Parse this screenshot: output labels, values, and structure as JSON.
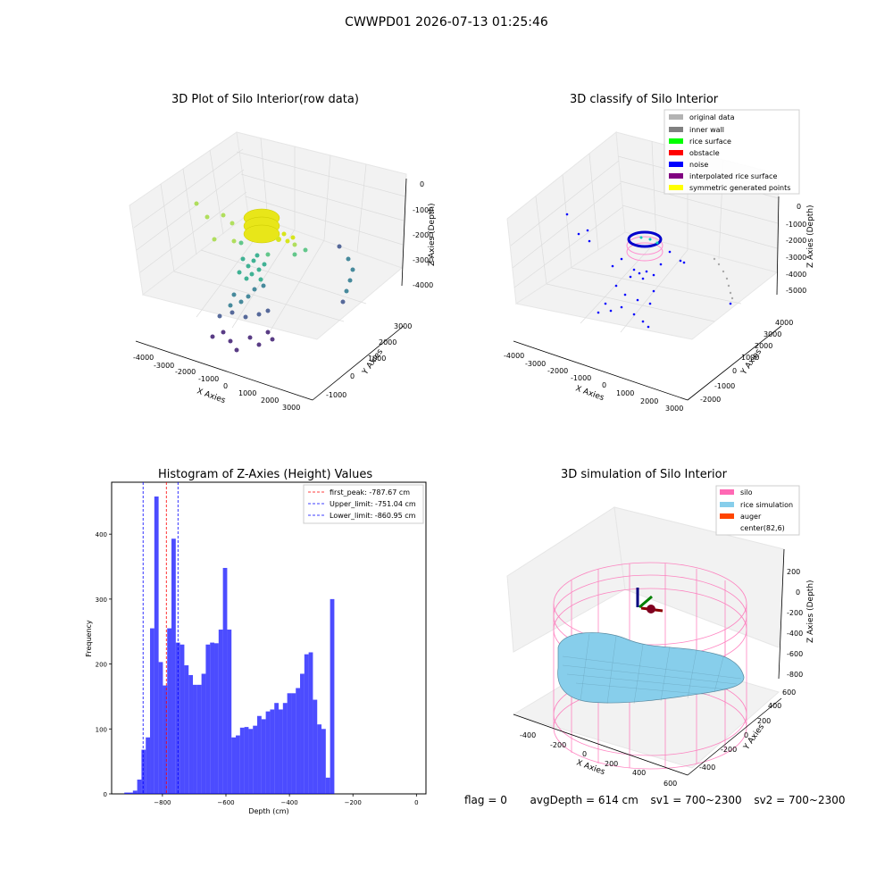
{
  "suptitle": "CWWPD01 2026-07-13 01:25:46",
  "panels": {
    "raw": {
      "title": "3D Plot of Silo Interior(row data)",
      "xlabel": "X Axies",
      "ylabel": "Y Axies",
      "zlabel": "Z Axies (Depth)",
      "xticks": [
        "-4000",
        "-3000",
        "-2000",
        "-1000",
        "0",
        "1000",
        "2000",
        "3000"
      ],
      "yticks": [
        "-1000",
        "0",
        "1000",
        "2000",
        "3000"
      ],
      "zticks": [
        "0",
        "-1000",
        "-2000",
        "-3000",
        "-4000"
      ]
    },
    "classify": {
      "title": "3D classify of Silo Interior",
      "xlabel": "X Axies",
      "ylabel": "Y Axies",
      "zlabel": "Z Axies (Depth)",
      "xticks": [
        "-4000",
        "-3000",
        "-2000",
        "-1000",
        "0",
        "1000",
        "2000",
        "3000"
      ],
      "yticks": [
        "-2000",
        "-1000",
        "0",
        "1000",
        "2000",
        "3000",
        "4000"
      ],
      "zticks": [
        "0",
        "-1000",
        "-2000",
        "-3000",
        "-4000",
        "-5000"
      ],
      "legend": [
        {
          "label": "original data",
          "color": "#b3b3b3"
        },
        {
          "label": "inner wall",
          "color": "#808080"
        },
        {
          "label": "rice surface",
          "color": "#00ff00"
        },
        {
          "label": "obstacle",
          "color": "#ff0000"
        },
        {
          "label": "noise",
          "color": "#0000ff"
        },
        {
          "label": "interpolated rice surface",
          "color": "#800080"
        },
        {
          "label": "symmetric generated points",
          "color": "#ffff00"
        }
      ]
    },
    "simulation": {
      "title": "3D simulation of Silo Interior",
      "xlabel": "X Axies",
      "ylabel": "Y Axies",
      "zlabel": "Z Axies (Depth)",
      "xticks": [
        "-400",
        "-200",
        "0",
        "200",
        "400",
        "600"
      ],
      "yticks": [
        "-400",
        "-200",
        "0",
        "200",
        "400",
        "600"
      ],
      "zticks": [
        "200",
        "0",
        "-200",
        "-400",
        "-600",
        "-800"
      ],
      "legend": [
        {
          "label": "silo",
          "color": "#ff69b4"
        },
        {
          "label": "rice simulation",
          "color": "#87ceeb"
        },
        {
          "label": "auger",
          "color": "#ff4500"
        },
        {
          "label": "center(82,6)",
          "color": ""
        }
      ]
    }
  },
  "chart_data": [
    {
      "type": "bar",
      "title": "Histogram of Z-Axies (Height) Values",
      "xlabel": "Depth (cm)",
      "ylabel": "Frequency",
      "xlim": [
        -960,
        30
      ],
      "ylim": [
        0,
        480
      ],
      "xticks": [
        -800,
        -600,
        -400,
        -200,
        0
      ],
      "yticks": [
        0,
        100,
        200,
        300,
        400
      ],
      "bar_color": "#0000ff",
      "bin_width": 13.5,
      "bins_start": -920,
      "values": [
        2,
        2,
        5,
        22,
        68,
        87,
        255,
        458,
        203,
        167,
        255,
        393,
        233,
        230,
        198,
        183,
        168,
        168,
        185,
        230,
        233,
        232,
        253,
        348,
        253,
        87,
        90,
        102,
        103,
        100,
        105,
        120,
        115,
        127,
        130,
        140,
        130,
        140,
        155,
        155,
        163,
        185,
        215,
        218,
        145,
        107,
        100,
        25,
        300
      ],
      "vlines": [
        {
          "label": "first_peak: -787.67 cm",
          "x": -787.67,
          "color": "#ff0000"
        },
        {
          "label": "Upper_limit: -751.04 cm",
          "x": -751.04,
          "color": "#0000ff"
        },
        {
          "label": "Lower_limit: -860.95 cm",
          "x": -860.95,
          "color": "#0000ff"
        }
      ],
      "legend_position": "top-right",
      "grid": false
    }
  ],
  "status": {
    "flag": "flag = 0",
    "avg_depth": "avgDepth = 614 cm",
    "sv1": "sv1 = 700~2300",
    "sv2": "sv2 = 700~2300"
  }
}
